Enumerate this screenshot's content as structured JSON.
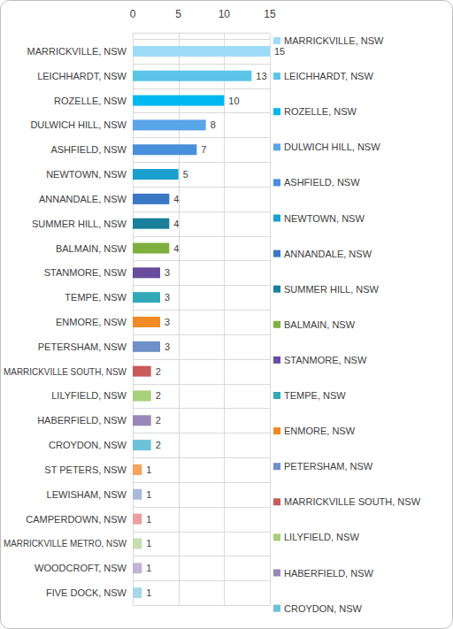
{
  "chart_data": {
    "type": "bar",
    "orientation": "horizontal",
    "categories": [
      "MARRICKVILLE, NSW",
      "LEICHHARDT, NSW",
      "ROZELLE, NSW",
      "DULWICH HILL, NSW",
      "ASHFIELD, NSW",
      "NEWTOWN, NSW",
      "ANNANDALE, NSW",
      "SUMMER HILL, NSW",
      "BALMAIN, NSW",
      "STANMORE, NSW",
      "TEMPE, NSW",
      "ENMORE, NSW",
      "PETERSHAM, NSW",
      "MARRICKVILLE SOUTH, NSW",
      "LILYFIELD, NSW",
      "HABERFIELD, NSW",
      "CROYDON, NSW",
      "ST PETERS, NSW",
      "LEWISHAM, NSW",
      "CAMPERDOWN, NSW",
      "MARRICKVILLE METRO, NSW",
      "WOODCROFT, NSW",
      "FIVE DOCK, NSW"
    ],
    "values": [
      15,
      13,
      10,
      8,
      7,
      5,
      4,
      4,
      4,
      3,
      3,
      3,
      3,
      2,
      2,
      2,
      2,
      1,
      1,
      1,
      1,
      1,
      1
    ],
    "colors": [
      "#9ddcf9",
      "#5bc4e8",
      "#00b8f0",
      "#5aa4e8",
      "#4a8fdc",
      "#1a9fcf",
      "#3a78c4",
      "#1a7f9a",
      "#7fb03f",
      "#6a4c9c",
      "#33a9b8",
      "#f08a24",
      "#6f8fc8",
      "#c85a5a",
      "#a6d07a",
      "#9a86b8",
      "#6cc2d6",
      "#f7a35c",
      "#a9b9dc",
      "#e8a0a0",
      "#c7deb0",
      "#c0b3d3",
      "#a7d8e6"
    ],
    "xlim": [
      0,
      15
    ],
    "xticks": [
      0,
      5,
      10,
      15
    ],
    "grid": true,
    "data_labels": true,
    "legend": "right"
  }
}
